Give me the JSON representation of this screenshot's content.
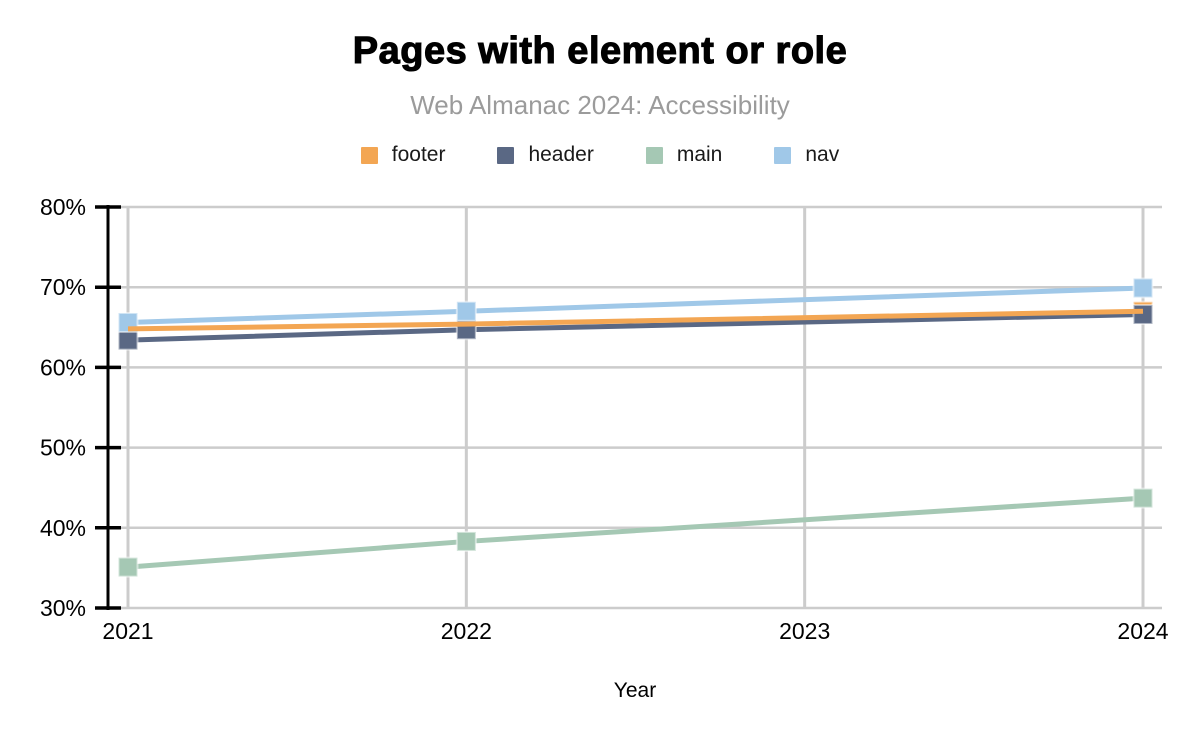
{
  "header": {
    "title": "Pages with element or role",
    "subtitle": "Web Almanac 2024: Accessibility"
  },
  "axes": {
    "x_label": "Year",
    "y_tick_labels": [
      "80%",
      "70%",
      "60%",
      "50%",
      "40%",
      "30%"
    ],
    "x_tick_labels": [
      "2021",
      "2022",
      "2023",
      "2024"
    ]
  },
  "colors": {
    "footer": "#f3a653",
    "header_series": "#5a6884",
    "main": "#a5c8b4",
    "nav": "#a0c8e8",
    "gridline": "#cccccc",
    "axis": "#000000",
    "subtitle_gray": "#9b9b9b"
  },
  "chart_data": {
    "type": "line",
    "title": "Pages with element or role",
    "subtitle": "Web Almanac 2024: Accessibility",
    "xlabel": "Year",
    "ylabel": "",
    "y_unit": "%",
    "ylim": [
      30,
      80
    ],
    "y_ticks": [
      80,
      70,
      60,
      50,
      40,
      30
    ],
    "x_axis_ticks": [
      2021,
      2022,
      2023,
      2024
    ],
    "x": [
      2021,
      2022,
      2024
    ],
    "series": [
      {
        "name": "footer",
        "color": "#f3a653",
        "values": [
          64.8,
          65.4,
          67.0
        ]
      },
      {
        "name": "header",
        "color": "#5a6884",
        "values": [
          63.4,
          64.7,
          66.6
        ]
      },
      {
        "name": "main",
        "color": "#a5c8b4",
        "values": [
          35.1,
          38.3,
          43.7
        ]
      },
      {
        "name": "nav",
        "color": "#a0c8e8",
        "values": [
          65.6,
          67.0,
          69.9
        ]
      }
    ],
    "grid": true,
    "legend_position": "top",
    "marker": "square",
    "note_missing_year": "no data markers for 2023"
  }
}
